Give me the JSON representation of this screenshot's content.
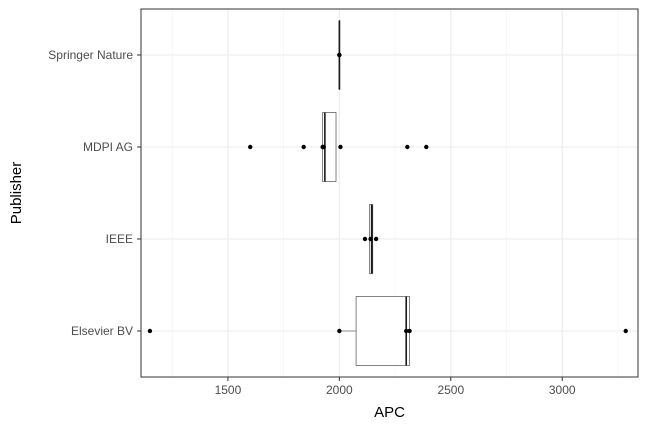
{
  "chart_data": {
    "type": "boxplot",
    "orientation": "horizontal",
    "xlabel": "APC",
    "ylabel": "Publisher",
    "xlim": [
      1110,
      3340
    ],
    "xticks": [
      1500,
      2000,
      2500,
      3000
    ],
    "xtick_labels": [
      "1500",
      "2000",
      "2500",
      "3000"
    ],
    "grid": true,
    "theme": "bw",
    "categories": [
      "Springer Nature",
      "MDPI AG",
      "IEEE",
      "Elsevier BV"
    ],
    "boxes": [
      {
        "category": "Springer Nature",
        "min": 2000,
        "q1": 2000,
        "median": 2000,
        "q3": 2000,
        "max": 2000,
        "points": [
          2000,
          2000
        ]
      },
      {
        "category": "MDPI AG",
        "min": 1925,
        "q1": 1925,
        "median": 1935,
        "q3": 1985,
        "max": 1985,
        "points": [
          1600,
          1840,
          1925,
          1930,
          2005,
          2305,
          2390
        ]
      },
      {
        "category": "IEEE",
        "min": 2135,
        "q1": 2135,
        "median": 2145,
        "q3": 2150,
        "max": 2150,
        "points": [
          2115,
          2140,
          2165
        ]
      },
      {
        "category": "Elsevier BV",
        "min": 2000,
        "q1": 2075,
        "median": 2300,
        "q3": 2315,
        "max": 2315,
        "points": [
          1150,
          2000,
          2300,
          2315,
          3285
        ]
      }
    ]
  }
}
